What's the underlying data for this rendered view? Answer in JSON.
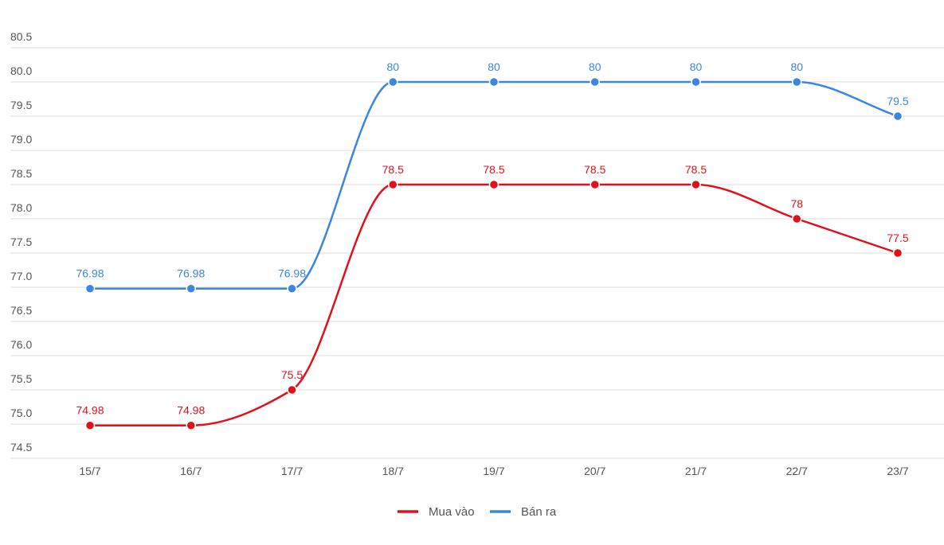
{
  "chart_data": {
    "type": "line",
    "title": "",
    "xlabel": "",
    "ylabel": "",
    "categories": [
      "15/7",
      "16/7",
      "17/7",
      "18/7",
      "19/7",
      "20/7",
      "21/7",
      "22/7",
      "23/7"
    ],
    "ylim": [
      74.5,
      80.5
    ],
    "yticks": [
      "74.5",
      "75.0",
      "75.5",
      "76.0",
      "76.5",
      "77.0",
      "77.5",
      "78.0",
      "78.5",
      "79.0",
      "79.5",
      "80.0",
      "80.5"
    ],
    "grid": true,
    "legend_position": "bottom-center",
    "series": [
      {
        "name": "Mua vào",
        "color": "#e0111b",
        "values": [
          74.98,
          74.98,
          75.5,
          78.5,
          78.5,
          78.5,
          78.5,
          78,
          77.5
        ],
        "labels": [
          "74.98",
          "74.98",
          "75.5",
          "78.5",
          "78.5",
          "78.5",
          "78.5",
          "78",
          "77.5"
        ]
      },
      {
        "name": "Bán ra",
        "color": "#3b86de",
        "values": [
          76.98,
          76.98,
          76.98,
          80,
          80,
          80,
          80,
          80,
          79.5
        ],
        "labels": [
          "76.98",
          "76.98",
          "76.98",
          "80",
          "80",
          "80",
          "80",
          "80",
          "79.5"
        ]
      }
    ]
  }
}
